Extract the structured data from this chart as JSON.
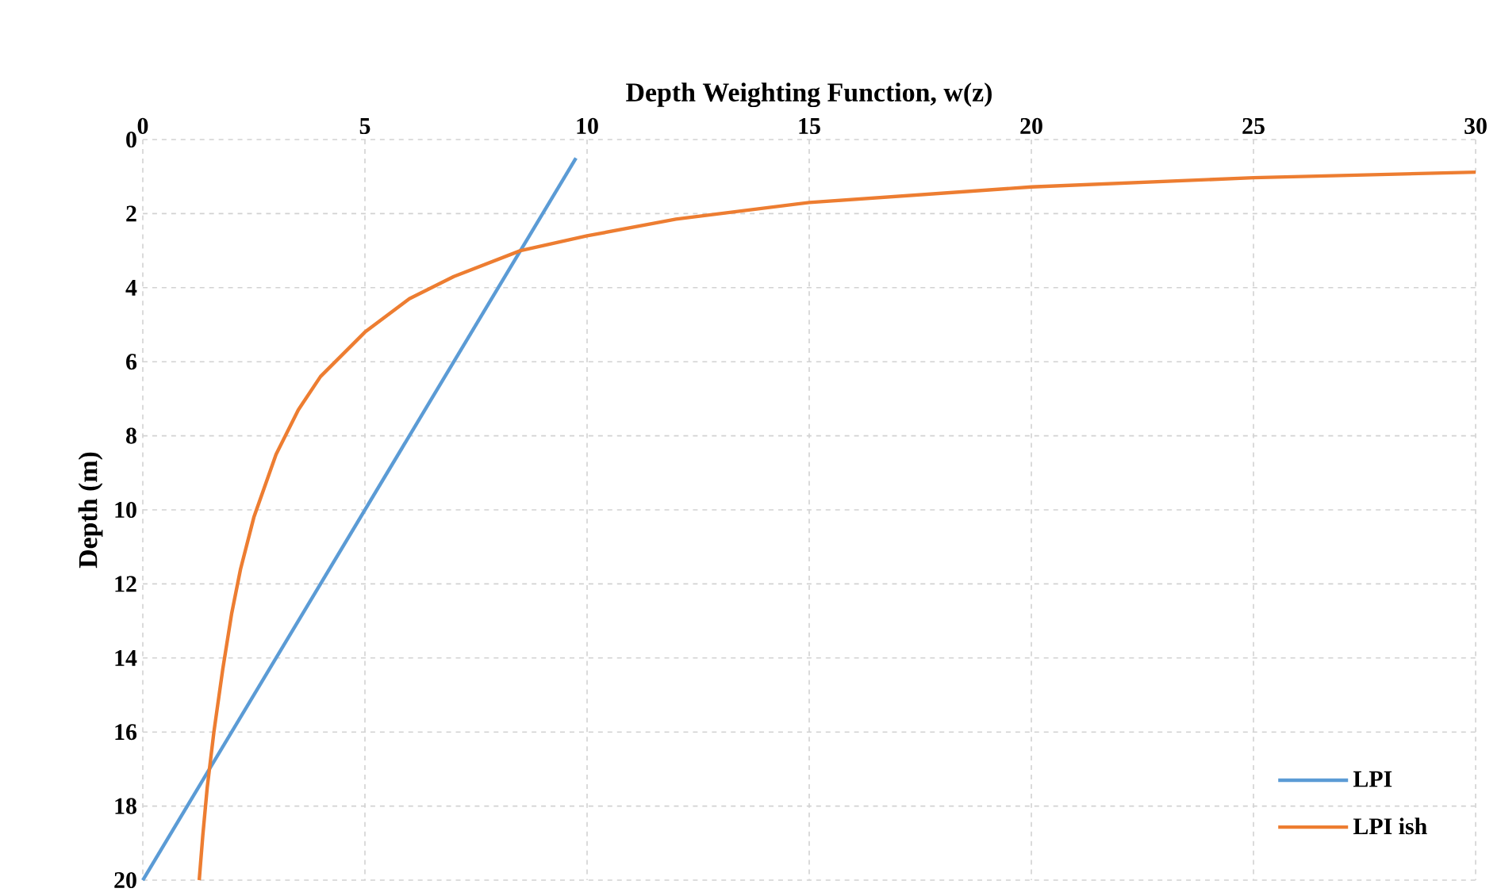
{
  "chart_data": {
    "type": "line",
    "xlabel": "Depth Weighting Function, w(z)",
    "ylabel": "Depth (m)",
    "xlim": [
      0,
      30
    ],
    "xticks": [
      0,
      5,
      10,
      15,
      20,
      25,
      30
    ],
    "ylim": [
      20,
      0
    ],
    "yticks": [
      0,
      2,
      4,
      6,
      8,
      10,
      12,
      14,
      16,
      18,
      20
    ],
    "grid": true,
    "legend": "bottom right",
    "marker": "none",
    "line_style": "solid",
    "series": [
      {
        "name": "LPI",
        "color": "#5b9bd5",
        "x": [
          9.75,
          0
        ],
        "values": [
          0.5,
          20
        ]
      },
      {
        "name": "LPI ish",
        "color": "#ed7d31",
        "x": [
          30,
          25,
          20,
          15,
          12,
          10,
          8.5,
          7,
          6,
          5,
          4,
          3.5,
          3,
          2.5,
          2.2,
          2,
          1.8,
          1.6,
          1.45,
          1.35,
          1.27
        ],
        "values": [
          0.88,
          1.03,
          1.28,
          1.7,
          2.15,
          2.6,
          3.0,
          3.7,
          4.3,
          5.2,
          6.4,
          7.3,
          8.5,
          10.2,
          11.6,
          12.8,
          14.3,
          16,
          17.5,
          18.8,
          20
        ]
      }
    ]
  }
}
